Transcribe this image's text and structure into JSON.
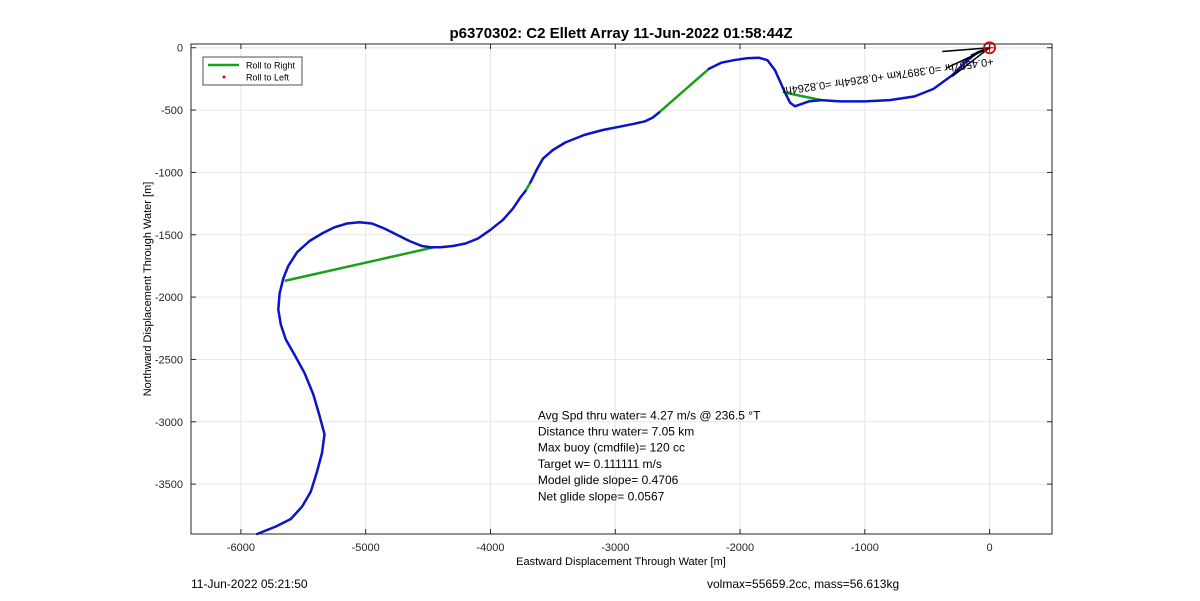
{
  "chart_data": {
    "type": "line",
    "title": "p6370302: C2 Ellett Array 11-Jun-2022 01:58:44Z",
    "xlabel": "Eastward Displacement Through Water [m]",
    "ylabel": "Northward Displacement Through Water [m]",
    "xlim": [
      -6400,
      500
    ],
    "ylim": [
      -3900,
      30
    ],
    "xticks": [
      -6000,
      -5000,
      -4000,
      -3000,
      -2000,
      -1000,
      0
    ],
    "yticks": [
      0,
      -500,
      -1000,
      -1500,
      -2000,
      -2500,
      -3000,
      -3500
    ],
    "grid": true,
    "legend": {
      "position": "top-left",
      "entries": [
        {
          "label": "Roll to Right",
          "color": "#1aa01a",
          "style": "line"
        },
        {
          "label": "Roll to Left",
          "color": "#e00000",
          "style": "dot"
        }
      ]
    },
    "track": {
      "color": "#0a14c8",
      "segments": [
        [
          [
            0,
            0
          ],
          [
            -100,
            -40
          ],
          [
            -200,
            -120
          ],
          [
            -300,
            -220
          ],
          [
            -450,
            -330
          ],
          [
            -600,
            -390
          ],
          [
            -800,
            -420
          ],
          [
            -1000,
            -430
          ],
          [
            -1200,
            -430
          ],
          [
            -1350,
            -420
          ],
          [
            -1450,
            -430
          ],
          [
            -1560,
            -470
          ],
          [
            -1600,
            -440
          ],
          [
            -1640,
            -360
          ],
          [
            -1680,
            -270
          ],
          [
            -1720,
            -180
          ],
          [
            -1780,
            -100
          ],
          [
            -1850,
            -80
          ],
          [
            -1950,
            -85
          ],
          [
            -2050,
            -100
          ],
          [
            -2150,
            -120
          ],
          [
            -2250,
            -170
          ]
        ],
        [
          [
            -2650,
            -520
          ],
          [
            -2700,
            -560
          ],
          [
            -2760,
            -590
          ],
          [
            -2850,
            -610
          ],
          [
            -2950,
            -630
          ],
          [
            -3100,
            -660
          ],
          [
            -3250,
            -700
          ],
          [
            -3400,
            -760
          ],
          [
            -3500,
            -820
          ],
          [
            -3580,
            -890
          ],
          [
            -3630,
            -980
          ],
          [
            -3680,
            -1080
          ]
        ],
        [
          [
            -3720,
            -1150
          ],
          [
            -3760,
            -1200
          ],
          [
            -3820,
            -1290
          ],
          [
            -3900,
            -1380
          ],
          [
            -4000,
            -1460
          ],
          [
            -4100,
            -1530
          ],
          [
            -4200,
            -1570
          ],
          [
            -4300,
            -1590
          ],
          [
            -4400,
            -1600
          ],
          [
            -4480,
            -1600
          ],
          [
            -4550,
            -1590
          ],
          [
            -4650,
            -1550
          ],
          [
            -4750,
            -1500
          ],
          [
            -4850,
            -1450
          ],
          [
            -4950,
            -1410
          ],
          [
            -5050,
            -1400
          ],
          [
            -5150,
            -1410
          ],
          [
            -5250,
            -1440
          ],
          [
            -5350,
            -1490
          ],
          [
            -5450,
            -1550
          ],
          [
            -5550,
            -1640
          ],
          [
            -5620,
            -1750
          ],
          [
            -5660,
            -1850
          ],
          [
            -5690,
            -1970
          ],
          [
            -5700,
            -2100
          ],
          [
            -5680,
            -2220
          ],
          [
            -5640,
            -2340
          ],
          [
            -5560,
            -2480
          ],
          [
            -5490,
            -2610
          ],
          [
            -5420,
            -2780
          ],
          [
            -5370,
            -2950
          ],
          [
            -5330,
            -3100
          ],
          [
            -5350,
            -3250
          ],
          [
            -5390,
            -3400
          ],
          [
            -5440,
            -3560
          ],
          [
            -5510,
            -3680
          ],
          [
            -5600,
            -3780
          ],
          [
            -5720,
            -3840
          ],
          [
            -5870,
            -3900
          ]
        ]
      ]
    },
    "roll_right_lines": [
      [
        [
          -2250,
          -170
        ],
        [
          -2650,
          -520
        ]
      ],
      [
        [
          -3680,
          -1080
        ],
        [
          -3720,
          -1150
        ]
      ],
      [
        [
          -1640,
          -360
        ],
        [
          -1350,
          -420
        ]
      ],
      [
        [
          -4450,
          -1600
        ],
        [
          -5650,
          -1870
        ]
      ]
    ],
    "bearing_lines": [
      [
        [
          0,
          0
        ],
        [
          -380,
          -30
        ]
      ],
      [
        [
          0,
          0
        ],
        [
          -340,
          -160
        ]
      ],
      [
        [
          0,
          0
        ],
        [
          -300,
          -230
        ]
      ],
      [
        [
          0,
          0
        ],
        [
          -150,
          -60
        ]
      ],
      [
        [
          -30,
          -10
        ],
        [
          -220,
          -110
        ]
      ]
    ],
    "target_marker": {
      "x": 0,
      "y": 0,
      "color": "#e00000"
    },
    "rotated_annotation": {
      "text": "+0.4587hr =0.3897km +0.8264hr =0.8264hr",
      "x": -820,
      "y": -200,
      "angle_deg": 172
    },
    "annotations": [
      "Avg Spd thru water=  4.27 m/s @ 236.5 °T",
      "Distance thru water=  7.05 km",
      "Max buoy (cmdfile)= 120 cc",
      "Target w= 0.111111 m/s",
      "Model glide slope= 0.4706",
      "Net glide slope= 0.0567"
    ],
    "annotation_anchor": {
      "x": -3620,
      "y": -2980
    }
  },
  "footer": {
    "left": "11-Jun-2022 05:21:50",
    "right": "volmax=55659.2cc, mass=56.613kg"
  },
  "colors": {
    "axis": "#262626",
    "grid": "#e6e6e6"
  }
}
